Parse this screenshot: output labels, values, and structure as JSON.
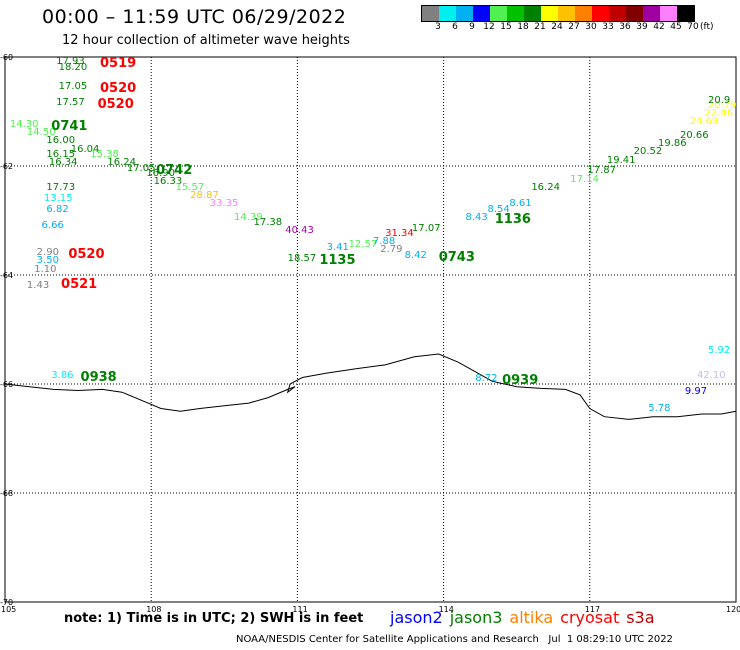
{
  "header": {
    "title": "00:00 – 11:59 UTC 06/29/2022",
    "subtitle": "12 hour collection of altimeter wave heights"
  },
  "colorbar": {
    "unit": "(ft)",
    "ticks": [
      "3",
      "6",
      "9",
      "12",
      "15",
      "18",
      "21",
      "24",
      "27",
      "30",
      "33",
      "36",
      "39",
      "42",
      "45",
      "70"
    ],
    "colors": [
      "#808080",
      "#00f0f0",
      "#00b0f0",
      "#0000ff",
      "#50f050",
      "#00c000",
      "#008000",
      "#ffff00",
      "#ffc000",
      "#ff8000",
      "#ff0000",
      "#c00000",
      "#800000",
      "#a000a0",
      "#ff80ff",
      "#000000"
    ]
  },
  "axes": {
    "lon_range": [
      105,
      120
    ],
    "lat_range": [
      -70,
      -60
    ],
    "lon_ticks": [
      "105",
      "108",
      "111",
      "114",
      "117",
      "120"
    ],
    "lat_ticks": [
      "-60",
      "-62",
      "-64",
      "-66",
      "-68",
      "-70"
    ]
  },
  "coastline": [
    [
      105,
      -66.0
    ],
    [
      105.5,
      -66.05
    ],
    [
      106.0,
      -66.1
    ],
    [
      106.5,
      -66.12
    ],
    [
      107.0,
      -66.1
    ],
    [
      107.4,
      -66.15
    ],
    [
      107.8,
      -66.3
    ],
    [
      108.2,
      -66.45
    ],
    [
      108.6,
      -66.5
    ],
    [
      109.0,
      -66.45
    ],
    [
      109.5,
      -66.4
    ],
    [
      110.0,
      -66.35
    ],
    [
      110.4,
      -66.25
    ],
    [
      110.8,
      -66.1
    ],
    [
      110.95,
      -66.05
    ],
    [
      110.8,
      -66.15
    ],
    [
      110.85,
      -66.0
    ],
    [
      111.1,
      -65.88
    ],
    [
      111.6,
      -65.8
    ],
    [
      112.2,
      -65.72
    ],
    [
      112.8,
      -65.65
    ],
    [
      113.4,
      -65.5
    ],
    [
      113.9,
      -65.45
    ],
    [
      114.3,
      -65.6
    ],
    [
      114.7,
      -65.8
    ],
    [
      115.0,
      -65.95
    ],
    [
      115.5,
      -66.05
    ],
    [
      116.0,
      -66.08
    ],
    [
      116.5,
      -66.1
    ],
    [
      116.8,
      -66.2
    ],
    [
      117.0,
      -66.45
    ],
    [
      117.3,
      -66.6
    ],
    [
      117.8,
      -66.65
    ],
    [
      118.3,
      -66.6
    ],
    [
      118.8,
      -66.6
    ],
    [
      119.3,
      -66.55
    ],
    [
      119.7,
      -66.55
    ],
    [
      120,
      -66.5
    ]
  ],
  "wave_heights": [
    {
      "v": "17.93",
      "lon": 106.05,
      "lat": -60.1,
      "c": "#008000"
    },
    {
      "v": "18.20",
      "lon": 106.1,
      "lat": -60.2,
      "c": "#008000"
    },
    {
      "v": "17.05",
      "lon": 106.1,
      "lat": -60.55,
      "c": "#008000"
    },
    {
      "v": "17.57",
      "lon": 106.05,
      "lat": -60.85,
      "c": "#008000"
    },
    {
      "v": "14.30",
      "lon": 105.1,
      "lat": -61.25,
      "c": "#50f050"
    },
    {
      "v": "14.50",
      "lon": 105.45,
      "lat": -61.4,
      "c": "#50f050"
    },
    {
      "v": "16.00",
      "lon": 105.85,
      "lat": -61.55,
      "c": "#008000"
    },
    {
      "v": "16.04",
      "lon": 106.35,
      "lat": -61.7,
      "c": "#008000"
    },
    {
      "v": "15.38",
      "lon": 106.75,
      "lat": -61.8,
      "c": "#50f050"
    },
    {
      "v": "16.15",
      "lon": 105.85,
      "lat": -61.8,
      "c": "#008000"
    },
    {
      "v": "16.34",
      "lon": 105.9,
      "lat": -61.95,
      "c": "#008000"
    },
    {
      "v": "16.24",
      "lon": 107.1,
      "lat": -61.95,
      "c": "#008000"
    },
    {
      "v": "17.05",
      "lon": 107.5,
      "lat": -62.05,
      "c": "#008000"
    },
    {
      "v": "16.90",
      "lon": 107.9,
      "lat": -62.15,
      "c": "#008000"
    },
    {
      "v": "16.33",
      "lon": 108.05,
      "lat": -62.3,
      "c": "#008000"
    },
    {
      "v": "15.57",
      "lon": 108.5,
      "lat": -62.4,
      "c": "#50f050"
    },
    {
      "v": "28.87",
      "lon": 108.8,
      "lat": -62.55,
      "c": "#ffc000"
    },
    {
      "v": "33.35",
      "lon": 109.2,
      "lat": -62.7,
      "c": "#ff80ff"
    },
    {
      "v": "14.39",
      "lon": 109.7,
      "lat": -62.95,
      "c": "#50f050"
    },
    {
      "v": "17.38",
      "lon": 110.1,
      "lat": -63.05,
      "c": "#008000"
    },
    {
      "v": "17.73",
      "lon": 105.85,
      "lat": -62.4,
      "c": "#008000"
    },
    {
      "v": "13.15",
      "lon": 105.8,
      "lat": -62.6,
      "c": "#00f0f0"
    },
    {
      "v": "6.82",
      "lon": 105.85,
      "lat": -62.8,
      "c": "#00b0f0"
    },
    {
      "v": "6.66",
      "lon": 105.75,
      "lat": -63.1,
      "c": "#00b0f0"
    },
    {
      "v": "2.90",
      "lon": 105.65,
      "lat": -63.6,
      "c": "#808080"
    },
    {
      "v": "3.50",
      "lon": 105.65,
      "lat": -63.75,
      "c": "#00b0f0"
    },
    {
      "v": "1.10",
      "lon": 105.6,
      "lat": -63.9,
      "c": "#808080"
    },
    {
      "v": "1.43",
      "lon": 105.45,
      "lat": -64.2,
      "c": "#808080"
    },
    {
      "v": "3.86",
      "lon": 105.95,
      "lat": -65.85,
      "c": "#00f0f0"
    },
    {
      "v": "40.43",
      "lon": 110.75,
      "lat": -63.2,
      "c": "#a000a0"
    },
    {
      "v": "18.57",
      "lon": 110.8,
      "lat": -63.7,
      "c": "#008000"
    },
    {
      "v": "3.41",
      "lon": 111.6,
      "lat": -63.5,
      "c": "#00b0f0"
    },
    {
      "v": "12.57",
      "lon": 112.05,
      "lat": -63.45,
      "c": "#50f050"
    },
    {
      "v": "7.88",
      "lon": 112.55,
      "lat": -63.4,
      "c": "#00b0f0"
    },
    {
      "v": "31.34",
      "lon": 112.8,
      "lat": -63.25,
      "c": "#ff0000"
    },
    {
      "v": "17.07",
      "lon": 113.35,
      "lat": -63.15,
      "c": "#008000"
    },
    {
      "v": "2.79",
      "lon": 112.7,
      "lat": -63.55,
      "c": "#808080"
    },
    {
      "v": "8.42",
      "lon": 113.2,
      "lat": -63.65,
      "c": "#00b0f0"
    },
    {
      "v": "8.43",
      "lon": 114.45,
      "lat": -62.95,
      "c": "#00b0f0"
    },
    {
      "v": "8.54",
      "lon": 114.9,
      "lat": -62.8,
      "c": "#00b0f0"
    },
    {
      "v": "8.61",
      "lon": 115.35,
      "lat": -62.7,
      "c": "#00b0f0"
    },
    {
      "v": "16.24",
      "lon": 115.8,
      "lat": -62.4,
      "c": "#008000"
    },
    {
      "v": "17.14",
      "lon": 116.6,
      "lat": -62.25,
      "c": "#50f050"
    },
    {
      "v": "17.87",
      "lon": 116.95,
      "lat": -62.1,
      "c": "#008000"
    },
    {
      "v": "19.41",
      "lon": 117.35,
      "lat": -61.9,
      "c": "#008000"
    },
    {
      "v": "20.52",
      "lon": 117.9,
      "lat": -61.75,
      "c": "#008000"
    },
    {
      "v": "19.86",
      "lon": 118.4,
      "lat": -61.6,
      "c": "#008000"
    },
    {
      "v": "20.66",
      "lon": 118.85,
      "lat": -61.45,
      "c": "#008000"
    },
    {
      "v": "24.69",
      "lon": 119.05,
      "lat": -61.2,
      "c": "#ffff00"
    },
    {
      "v": "22.46",
      "lon": 119.35,
      "lat": -61.05,
      "c": "#ffff00"
    },
    {
      "v": "20.79",
      "lon": 119.6,
      "lat": -60.9,
      "c": "#ffff00"
    },
    {
      "v": "20.9",
      "lon": 119.7,
      "lat": -60.8,
      "c": "#008000"
    },
    {
      "v": "8.72",
      "lon": 114.65,
      "lat": -65.9,
      "c": "#00b0f0"
    },
    {
      "v": "5.92",
      "lon": 119.65,
      "lat": -65.4,
      "c": "#00f0f0"
    },
    {
      "v": "42.10",
      "lon": 119.2,
      "lat": -65.85,
      "c": "#c0c0f0"
    },
    {
      "v": "9.97",
      "lon": 118.95,
      "lat": -66.15,
      "c": "#0000ff"
    },
    {
      "v": "5.78",
      "lon": 118.2,
      "lat": -66.45,
      "c": "#00b0f0"
    }
  ],
  "pass_times": [
    {
      "v": "0519",
      "lon": 106.95,
      "lat": -60.1,
      "c": "#ff0000"
    },
    {
      "v": "0520",
      "lon": 106.95,
      "lat": -60.55,
      "c": "#ff0000"
    },
    {
      "v": "0520",
      "lon": 106.9,
      "lat": -60.85,
      "c": "#ff0000"
    },
    {
      "v": "0741",
      "lon": 105.95,
      "lat": -61.25,
      "c": "#008000"
    },
    {
      "v": "0742",
      "lon": 108.1,
      "lat": -62.05,
      "c": "#008000"
    },
    {
      "v": "0520",
      "lon": 106.3,
      "lat": -63.6,
      "c": "#ff0000"
    },
    {
      "v": "0521",
      "lon": 106.15,
      "lat": -64.15,
      "c": "#ff0000"
    },
    {
      "v": "0938",
      "lon": 106.55,
      "lat": -65.85,
      "c": "#008000"
    },
    {
      "v": "1135",
      "lon": 111.45,
      "lat": -63.7,
      "c": "#008000"
    },
    {
      "v": "0743",
      "lon": 113.9,
      "lat": -63.65,
      "c": "#008000"
    },
    {
      "v": "1136",
      "lon": 115.05,
      "lat": -62.95,
      "c": "#008000"
    },
    {
      "v": "0939",
      "lon": 115.2,
      "lat": -65.9,
      "c": "#008000"
    }
  ],
  "note": "note: 1) Time is in UTC; 2) SWH is in feet",
  "legend": [
    {
      "label": "jason2",
      "color": "#0000ff"
    },
    {
      "label": "jason3",
      "color": "#008000"
    },
    {
      "label": "altika",
      "color": "#ff8000"
    },
    {
      "label": "cryosat",
      "color": "#ff0000"
    },
    {
      "label": "s3a",
      "color": "#c00000"
    }
  ],
  "footer": {
    "org": "NOAA/NESDIS Center for Satellite Applications and Research",
    "timestamp": "Jul  1 08:29:10 UTC 2022"
  }
}
